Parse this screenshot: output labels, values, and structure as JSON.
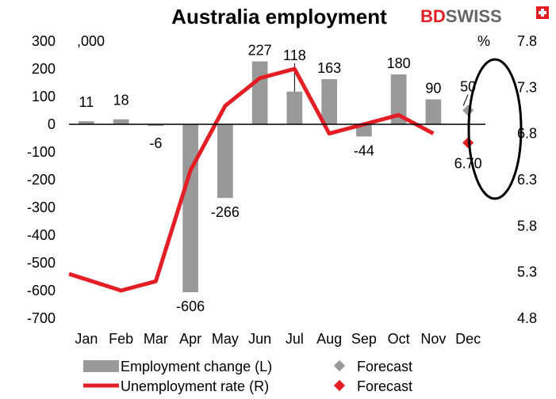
{
  "chart_data": {
    "type": "bar",
    "title": "Australia employment",
    "brand": {
      "text_main": "BD",
      "text_accent": "SWISS",
      "icon": "swiss-cross-icon",
      "accent": "#e31e24"
    },
    "left_axis": {
      "unit": ",000",
      "ticks": [
        300,
        200,
        100,
        0,
        -100,
        -200,
        -300,
        -400,
        -500,
        -600,
        -700
      ],
      "range": [
        -700,
        300
      ]
    },
    "right_axis": {
      "unit": "%",
      "ticks": [
        "7.8",
        "7.3",
        "6.8",
        "6.3",
        "5.8",
        "5.3",
        "4.8"
      ],
      "range": [
        4.8,
        7.8
      ]
    },
    "categories": [
      "Jan",
      "Feb",
      "Mar",
      "Apr",
      "May",
      "Jun",
      "Jul",
      "Aug",
      "Sep",
      "Oct",
      "Nov",
      "Dec"
    ],
    "series": [
      {
        "name": "Employment change (L)",
        "kind": "bar",
        "color": "#999999",
        "values": [
          11,
          18,
          -6,
          -606,
          -266,
          227,
          118,
          163,
          -44,
          180,
          90,
          null
        ],
        "labels": [
          "11",
          "18",
          "-6",
          "-606",
          "-266",
          "227",
          "118",
          "163",
          "-44",
          "180",
          "90",
          null
        ]
      },
      {
        "name": "Unemployment rate (R)",
        "kind": "line",
        "color": "#e31e24",
        "values": [
          5.28,
          5.1,
          5.2,
          6.4,
          7.1,
          7.4,
          7.5,
          6.8,
          6.9,
          7.0,
          6.8,
          null
        ]
      },
      {
        "name": "Forecast",
        "kind": "marker",
        "axis": "left",
        "color": "#999999",
        "values": [
          null,
          null,
          null,
          null,
          null,
          null,
          null,
          null,
          null,
          null,
          null,
          50
        ],
        "labels": [
          null,
          null,
          null,
          null,
          null,
          null,
          null,
          null,
          null,
          null,
          null,
          "50"
        ]
      },
      {
        "name": "Forecast",
        "kind": "marker",
        "axis": "right",
        "color": "#e31e24",
        "values": [
          null,
          null,
          null,
          null,
          null,
          null,
          null,
          null,
          null,
          null,
          null,
          6.7
        ],
        "labels": [
          null,
          null,
          null,
          null,
          null,
          null,
          null,
          null,
          null,
          null,
          null,
          "6.70"
        ]
      }
    ],
    "legend_position": "bottom",
    "grid": false
  }
}
